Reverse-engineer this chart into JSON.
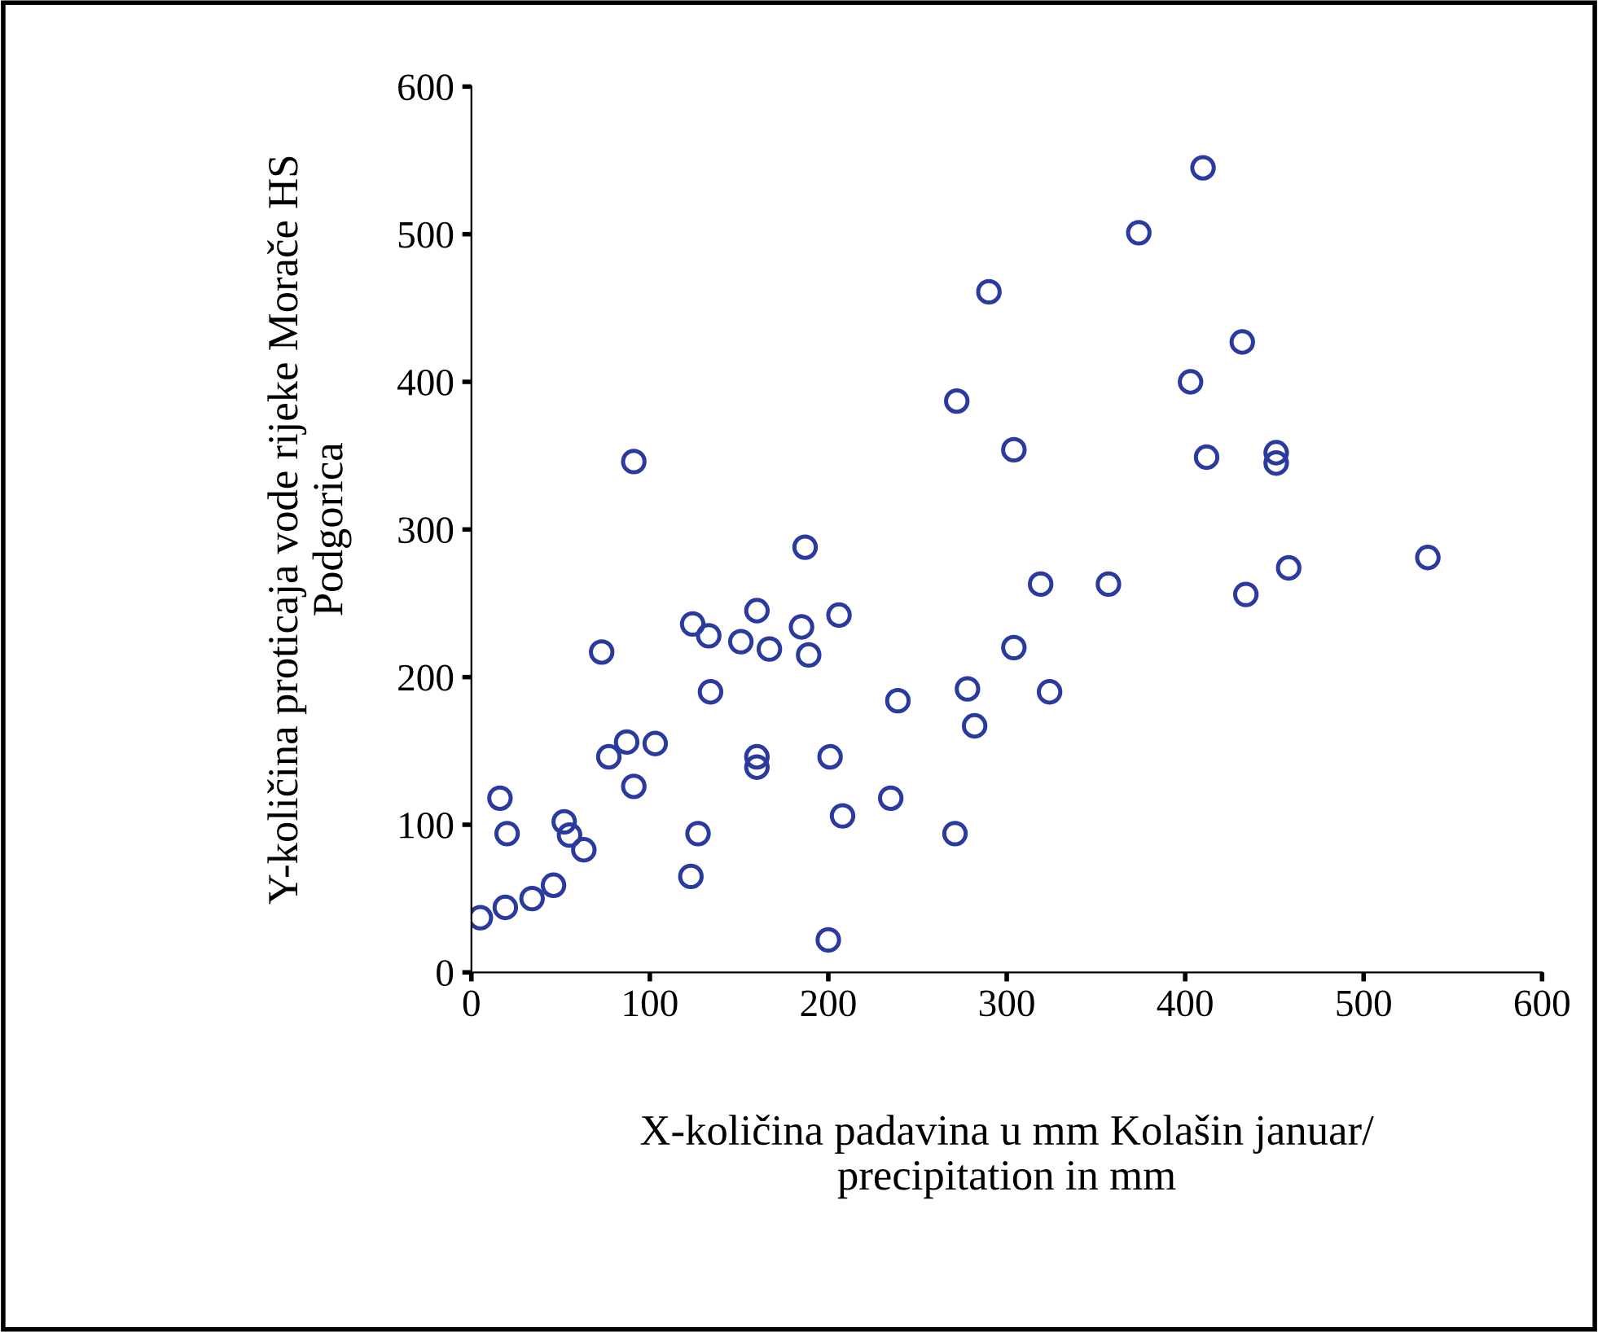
{
  "chart_data": {
    "type": "scatter",
    "xlabel": "X-količina padavina u mm Kolašin januar/\nprecipitation in mm",
    "ylabel": "Y-količina proticaja vode rijeke Morače HS\nPodgorica",
    "x": [
      5,
      19,
      34,
      46,
      16,
      20,
      52,
      55,
      63,
      73,
      77,
      87,
      103,
      91,
      91,
      123,
      127,
      124,
      133,
      134,
      151,
      160,
      167,
      160,
      160,
      185,
      189,
      187,
      206,
      201,
      208,
      200,
      239,
      235,
      271,
      278,
      282,
      272,
      290,
      410,
      374,
      432,
      403,
      304,
      412,
      451,
      451,
      536,
      458,
      434,
      357,
      319,
      304,
      324
    ],
    "values": [
      37,
      44,
      50,
      59,
      118,
      94,
      102,
      93,
      83,
      217,
      146,
      156,
      155,
      126,
      346,
      65,
      94,
      236,
      228,
      190,
      224,
      245,
      219,
      146,
      139,
      234,
      215,
      288,
      242,
      146,
      106,
      22,
      184,
      118,
      94,
      192,
      167,
      387,
      461,
      545,
      501,
      427,
      400,
      354,
      349,
      352,
      345,
      281,
      274,
      256,
      263,
      263,
      220,
      190
    ],
    "color": "#2b3a9e",
    "marker": "circle",
    "xlim": [
      0,
      600
    ],
    "ylim": [
      0,
      600
    ],
    "xticks": [
      0,
      100,
      200,
      300,
      400,
      500,
      600
    ],
    "yticks": [
      0,
      100,
      200,
      300,
      400,
      500,
      600
    ],
    "grid": false
  }
}
